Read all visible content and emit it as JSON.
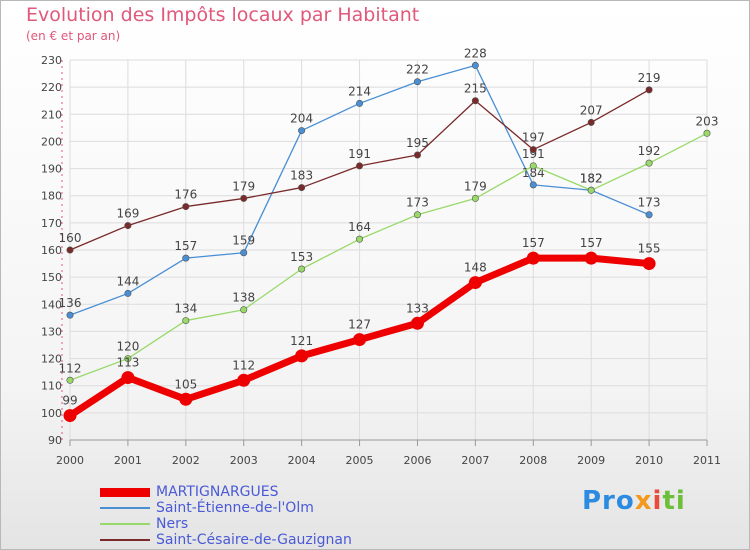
{
  "header": {
    "title": "Evolution des Impôts locaux par Habitant",
    "subtitle": "(en € et par an)"
  },
  "logo": {
    "text": "Proxiti"
  },
  "chart_data": {
    "type": "line",
    "title": "Evolution des Impôts locaux par Habitant",
    "subtitle": "(en € et par an)",
    "x": [
      2000,
      2001,
      2002,
      2003,
      2004,
      2005,
      2006,
      2007,
      2008,
      2009,
      2010,
      2011
    ],
    "xlabel": "",
    "ylabel": "",
    "ylim": [
      90,
      230
    ],
    "yticks": [
      90,
      100,
      110,
      120,
      130,
      140,
      150,
      160,
      170,
      180,
      190,
      200,
      210,
      220,
      230
    ],
    "grid": true,
    "legend_position": "bottom-left",
    "series": [
      {
        "name": "MARTIGNARGUES",
        "color": "#ee0000",
        "values": [
          99,
          113,
          105,
          112,
          121,
          127,
          133,
          148,
          157,
          157,
          155,
          null
        ]
      },
      {
        "name": "Saint-Étienne-de-l'Olm",
        "color": "#4a8fd4",
        "values": [
          136,
          144,
          157,
          159,
          204,
          214,
          222,
          228,
          184,
          182,
          173,
          null
        ]
      },
      {
        "name": "Ners",
        "color": "#98d96a",
        "values": [
          112,
          120,
          134,
          138,
          153,
          164,
          173,
          179,
          191,
          182,
          192,
          203
        ]
      },
      {
        "name": "Saint-Césaire-de-Gauzignan",
        "color": "#7a2a2a",
        "values": [
          160,
          169,
          176,
          179,
          183,
          191,
          195,
          215,
          197,
          207,
          219,
          null
        ]
      }
    ]
  }
}
